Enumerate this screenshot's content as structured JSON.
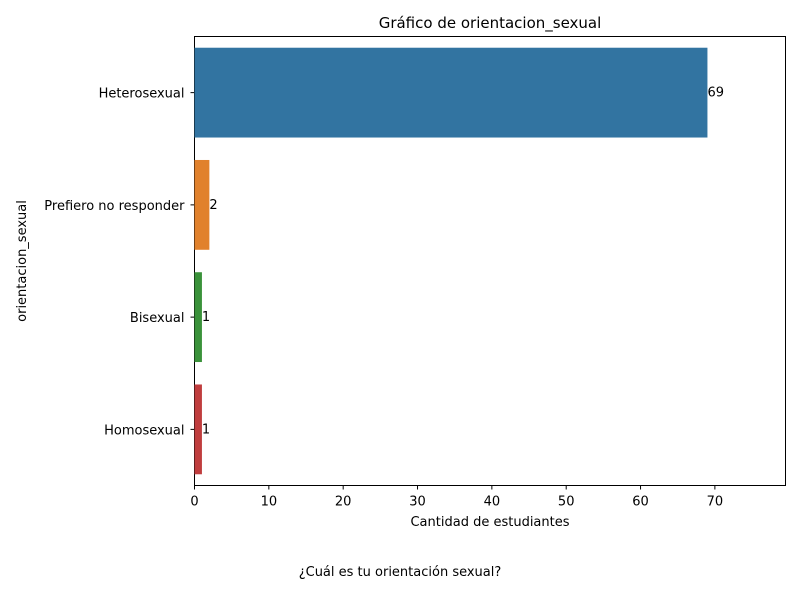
{
  "chart_data": {
    "type": "bar",
    "orientation": "horizontal",
    "title": "Gráfico de orientacion_sexual",
    "xlabel": "Cantidad de estudiantes",
    "ylabel": "orientacion_sexual",
    "categories": [
      "Heterosexual",
      "Prefiero no responder",
      "Bisexual",
      "Homosexual"
    ],
    "values": [
      69,
      2,
      1,
      1
    ],
    "data_labels": [
      "69",
      "2",
      "1",
      "1"
    ],
    "colors": [
      "#3274a1",
      "#e1812c",
      "#3a923a",
      "#c03d3e"
    ],
    "xlim": [
      0,
      79.5
    ],
    "xticks": [
      0,
      10,
      20,
      30,
      40,
      50,
      60,
      70
    ],
    "grid": false,
    "legend": "none"
  },
  "caption": "¿Cuál es tu orientación sexual?"
}
